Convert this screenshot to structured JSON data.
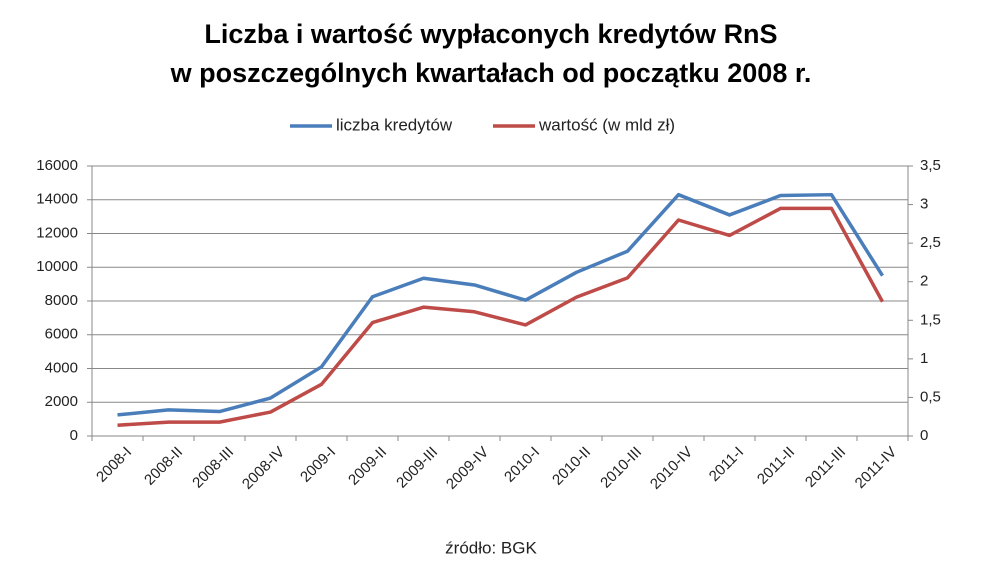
{
  "chart_data": {
    "type": "line",
    "title": [
      "Liczba i wartość wypłaconych kredytów RnS",
      "w poszczególnych kwartałach od początku 2008 r."
    ],
    "categories": [
      "2008-I",
      "2008-II",
      "2008-III",
      "2008-IV",
      "2009-I",
      "2009-II",
      "2009-III",
      "2009-IV",
      "2010-I",
      "2010-II",
      "2010-III",
      "2010-IV",
      "2011-I",
      "2011-II",
      "2011-III",
      "2011-IV"
    ],
    "series": [
      {
        "name": "liczba kredytów",
        "color": "#4a7ebb",
        "values": [
          1250,
          1550,
          1450,
          2250,
          4100,
          8250,
          9350,
          8950,
          8050,
          9700,
          10950,
          14300,
          13100,
          14250,
          14300,
          9500
        ]
      },
      {
        "name": "wartość (w mld zł)",
        "color": "#be4b48",
        "axis": "y2",
        "values": [
          0.14,
          0.18,
          0.18,
          0.31,
          0.67,
          1.47,
          1.67,
          1.61,
          1.44,
          1.8,
          2.05,
          2.8,
          2.6,
          2.95,
          2.95,
          1.74
        ]
      }
    ],
    "ylim": [
      0,
      16000
    ],
    "yticks": [
      0,
      2000,
      4000,
      6000,
      8000,
      10000,
      12000,
      14000,
      16000
    ],
    "y2lim": [
      0,
      3.5
    ],
    "y2ticks": [
      0,
      {
        "value": 0.5,
        "label": "0,5"
      },
      1,
      {
        "value": 1.5,
        "label": "1,5"
      },
      2,
      {
        "value": 2.5,
        "label": "2,5"
      },
      3,
      {
        "value": 3.5,
        "label": "3,5"
      }
    ],
    "grid": true,
    "legend": "top",
    "source": "źródło: BGK"
  }
}
